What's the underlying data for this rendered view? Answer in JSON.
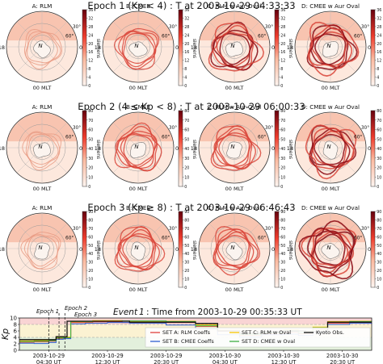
{
  "epoch_titles": [
    "Epoch 1 (Kp < 4) : T at 2003-10-29 04:33:33",
    "Epoch 2 (4 ≤ Kp < 8) : T at 2003-10-29 06:00:33",
    "Epoch 3 (Kp ≥ 8) : T at 2003-10-29 06:46:43"
  ],
  "panel_titles": [
    "A: RLM",
    "B: CMEE",
    "C: RLM w Aur Oval",
    "D: CMEE w Aur Oval"
  ],
  "polar_labels": {
    "left_mlt": "18",
    "right_mlt": "06",
    "bottom_mlt": "00 MLT",
    "pole": "N",
    "lat30": "30°",
    "lat60": "60°"
  },
  "colorbar_label": "siemens",
  "colorbar_ticks": [
    [
      "0",
      "4",
      "8",
      "12",
      "16",
      "20",
      "24",
      "28",
      "32",
      "36"
    ],
    [
      "0",
      "10",
      "20",
      "30",
      "40",
      "50",
      "60",
      "70",
      "80"
    ],
    [
      "0",
      "10",
      "20",
      "30",
      "40",
      "50",
      "60",
      "70",
      "80",
      "90"
    ]
  ],
  "colorbar_max": [
    36,
    80,
    90
  ],
  "panel_intensity": [
    [
      0.25,
      0.45,
      0.75,
      0.85
    ],
    [
      0.2,
      0.55,
      0.6,
      0.8
    ],
    [
      0.2,
      0.55,
      0.55,
      0.9
    ]
  ],
  "colors": {
    "low": "#fff5f0",
    "mid": "#f08a6a",
    "high": "#67000d",
    "band_red": "#f9d4d4",
    "band_yellow": "#fbf2d2",
    "band_green": "#e3f0dc",
    "series_red": "#e0403c",
    "series_blue": "#2f5fd0",
    "series_yellow": "#f5c400",
    "series_green": "#3cb043",
    "series_black": "#111111"
  },
  "timeline": {
    "title_prefix": "Event",
    "event_number": "1",
    "title_suffix": ": Time from 2003-10-29 00:35:33 UT",
    "ylabel": "Kp",
    "epoch_labels": [
      "Epoch 1",
      "Epoch 2",
      "Epoch 3"
    ],
    "legend": [
      {
        "label": "SET A: RLM Coeffs",
        "color": "#e0403c"
      },
      {
        "label": "SET C: RLM w Oval",
        "color": "#f5c400"
      },
      {
        "label": "Kyoto Obs.",
        "color": "#111111"
      },
      {
        "label": "SET B: CMEE Coeffs",
        "color": "#2f5fd0"
      },
      {
        "label": "SET D: CMEE w Oval",
        "color": "#3cb043"
      }
    ]
  },
  "chart_data": {
    "type": "line",
    "x_start_hours": 0,
    "x_end_hours": 48,
    "x_ticks": [
      {
        "hours": 4,
        "label1": "2003-10-29",
        "label2": "04:30 UT"
      },
      {
        "hours": 12,
        "label1": "2003-10-29",
        "label2": "12:30 UT"
      },
      {
        "hours": 20,
        "label1": "2003-10-29",
        "label2": "20:30 UT"
      },
      {
        "hours": 28,
        "label1": "2003-10-30",
        "label2": "04:30 UT"
      },
      {
        "hours": 36,
        "label1": "2003-10-30",
        "label2": "12:30 UT"
      },
      {
        "hours": 44,
        "label1": "2003-10-30",
        "label2": "20:30 UT"
      }
    ],
    "y_ticks": [
      0,
      2,
      4,
      6,
      8,
      10
    ],
    "ylim": [
      0,
      10
    ],
    "bands": [
      {
        "from": 0,
        "to": 4,
        "color": "green"
      },
      {
        "from": 4,
        "to": 8,
        "color": "yellow"
      },
      {
        "from": 8,
        "to": 10,
        "color": "red"
      }
    ],
    "epoch_hours": [
      4.0,
      5.4,
      6.2
    ],
    "series": [
      {
        "name": "Kyoto Obs.",
        "color": "#111111",
        "points": [
          [
            0,
            3.3
          ],
          [
            3,
            3.3
          ],
          [
            4,
            3.3
          ],
          [
            5,
            4.2
          ],
          [
            5.6,
            4.2
          ],
          [
            6.5,
            9.0
          ],
          [
            12,
            9.0
          ],
          [
            15,
            8.7
          ],
          [
            21,
            8.7
          ],
          [
            24,
            8.3
          ],
          [
            27,
            6.0
          ],
          [
            30,
            5.3
          ],
          [
            33,
            5.7
          ],
          [
            36,
            6.0
          ],
          [
            39,
            5.7
          ],
          [
            42,
            8.7
          ],
          [
            45,
            8.7
          ],
          [
            48,
            8.7
          ]
        ]
      },
      {
        "name": "SET A: RLM Coeffs",
        "color": "#e0403c",
        "points": [
          [
            0,
            2.5
          ],
          [
            2,
            2.6
          ],
          [
            4,
            2.8
          ],
          [
            5,
            3.6
          ],
          [
            6,
            3.8
          ],
          [
            7,
            8.6
          ],
          [
            10,
            8.8
          ],
          [
            14,
            8.6
          ],
          [
            20,
            8.6
          ],
          [
            24,
            7.4
          ],
          [
            27,
            5.9
          ],
          [
            30,
            4.6
          ],
          [
            33,
            5.1
          ],
          [
            36,
            5.6
          ],
          [
            38,
            5.1
          ],
          [
            40,
            6.6
          ],
          [
            42,
            8.4
          ],
          [
            45,
            8.6
          ],
          [
            48,
            8.6
          ]
        ]
      },
      {
        "name": "SET B: CMEE Coeffs",
        "color": "#2f5fd0",
        "points": [
          [
            0,
            2.2
          ],
          [
            2,
            2.1
          ],
          [
            4,
            2.4
          ],
          [
            5,
            3.4
          ],
          [
            6,
            3.6
          ],
          [
            7,
            8.2
          ],
          [
            9,
            8.4
          ],
          [
            12,
            8.6
          ],
          [
            15,
            8.4
          ],
          [
            20,
            7.8
          ],
          [
            24,
            6.6
          ],
          [
            27,
            4.8
          ],
          [
            30,
            4.1
          ],
          [
            33,
            4.8
          ],
          [
            36,
            5.0
          ],
          [
            38,
            4.6
          ],
          [
            40,
            5.6
          ],
          [
            42,
            8.0
          ],
          [
            45,
            8.4
          ],
          [
            48,
            8.5
          ]
        ]
      },
      {
        "name": "SET C: RLM w Oval",
        "color": "#f5c400",
        "points": [
          [
            0,
            2.9
          ],
          [
            2,
            3.0
          ],
          [
            4,
            3.2
          ],
          [
            5,
            4.0
          ],
          [
            6,
            4.1
          ],
          [
            7,
            8.8
          ],
          [
            10,
            9.2
          ],
          [
            14,
            9.0
          ],
          [
            20,
            9.0
          ],
          [
            24,
            7.9
          ],
          [
            27,
            6.2
          ],
          [
            30,
            5.1
          ],
          [
            33,
            5.6
          ],
          [
            36,
            6.3
          ],
          [
            38,
            5.9
          ],
          [
            40,
            7.2
          ],
          [
            42,
            8.9
          ],
          [
            45,
            9.0
          ],
          [
            48,
            9.0
          ]
        ]
      },
      {
        "name": "SET D: CMEE w Oval",
        "color": "#3cb043",
        "points": [
          [
            0,
            2.7
          ],
          [
            2,
            2.8
          ],
          [
            4,
            3.0
          ],
          [
            5,
            3.8
          ],
          [
            6,
            3.9
          ],
          [
            7,
            8.9
          ],
          [
            10,
            9.0
          ],
          [
            14,
            9.1
          ],
          [
            20,
            8.9
          ],
          [
            24,
            7.6
          ],
          [
            27,
            6.0
          ],
          [
            30,
            4.9
          ],
          [
            33,
            5.4
          ],
          [
            36,
            5.9
          ],
          [
            38,
            5.4
          ],
          [
            40,
            7.0
          ],
          [
            42,
            8.7
          ],
          [
            45,
            8.9
          ],
          [
            48,
            9.0
          ]
        ]
      }
    ]
  }
}
